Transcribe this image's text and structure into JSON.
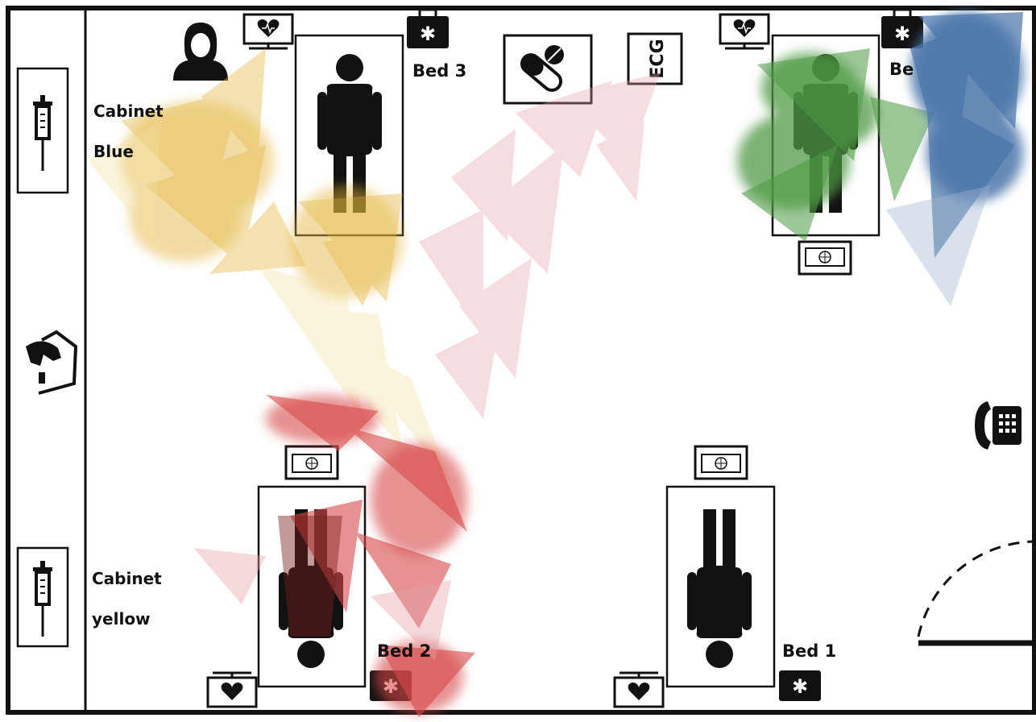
{
  "room": {
    "beds": [
      {
        "label": "Bed 3"
      },
      {
        "label": "Be"
      },
      {
        "label": "Bed 2"
      },
      {
        "label": "Bed 1"
      }
    ],
    "cabinets": [
      {
        "line1": "Cabinet",
        "line2": "Blue"
      },
      {
        "line1": "Cabinet",
        "line2": "yellow"
      }
    ],
    "ecg_label": "ECG"
  },
  "icons": [
    "nurse-icon",
    "heart-monitor-icon",
    "medical-kit-icon",
    "pill-icon",
    "ecg-device-icon",
    "syringe-icon",
    "hand-sanitizer-icon",
    "wall-phone-icon",
    "computer-monitor-icon",
    "patient-figure-icon"
  ],
  "colors": {
    "yellow_track": "#e3b43a",
    "red_track": "#d84a4a",
    "pink_track": "#e7a0a6",
    "green_track": "#4f9a45",
    "blue_track": "#4b76aa",
    "walls": "#111111"
  }
}
